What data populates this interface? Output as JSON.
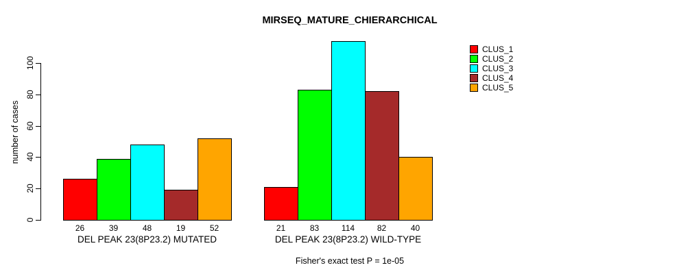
{
  "title": "MIRSEQ_MATURE_CHIERARCHICAL",
  "chart_data": {
    "type": "bar",
    "title": "MIRSEQ_MATURE_CHIERARCHICAL",
    "xlabel": "",
    "ylabel": "number of cases",
    "yticks": [
      0,
      20,
      40,
      60,
      80,
      100
    ],
    "ylim": [
      0,
      115
    ],
    "grid": false,
    "legend_position": "right",
    "categories": [
      "DEL PEAK 23(8P23.2) MUTATED",
      "DEL PEAK 23(8P23.2) WILD-TYPE"
    ],
    "series": [
      {
        "name": "CLUS_1",
        "color": "#ff0000",
        "values": [
          26,
          21
        ]
      },
      {
        "name": "CLUS_2",
        "color": "#00ff00",
        "values": [
          39,
          83
        ]
      },
      {
        "name": "CLUS_3",
        "color": "#00ffff",
        "values": [
          48,
          114
        ]
      },
      {
        "name": "CLUS_4",
        "color": "#a52a2a",
        "values": [
          19,
          82
        ]
      },
      {
        "name": "CLUS_5",
        "color": "#ffa500",
        "values": [
          52,
          40
        ]
      }
    ],
    "bar_value_labels": [
      [
        26,
        39,
        48,
        19,
        52
      ],
      [
        21,
        83,
        114,
        82,
        40
      ]
    ],
    "annotation": "Fisher's exact test P = 1e-05"
  },
  "colors": {
    "background": "#ffffff",
    "axis": "#000000",
    "text": "#000000"
  }
}
